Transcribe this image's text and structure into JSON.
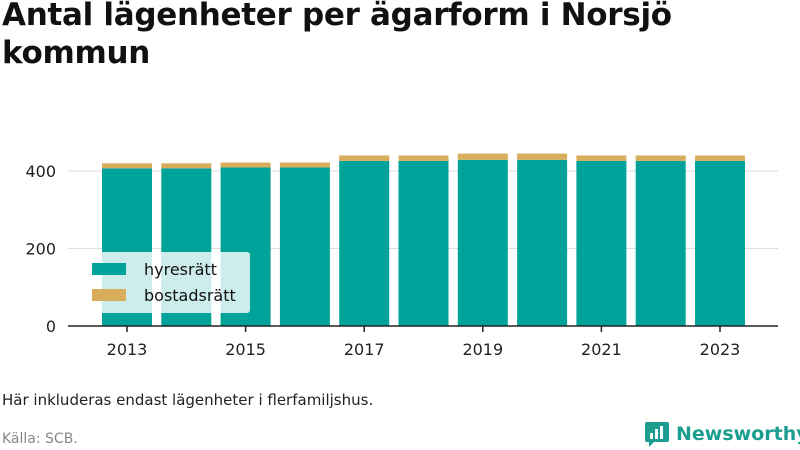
{
  "header": {
    "title": "Antal lägenheter per ägarform i Norsjö kommun"
  },
  "chart_data": {
    "type": "bar",
    "stacked": true,
    "categories": [
      "2013",
      "2014",
      "2015",
      "2016",
      "2017",
      "2018",
      "2019",
      "2020",
      "2021",
      "2022",
      "2023"
    ],
    "x_tick_labels": [
      "2013",
      "2015",
      "2017",
      "2019",
      "2021",
      "2023"
    ],
    "y_tick_labels": [
      "0",
      "200",
      "400"
    ],
    "ylim": [
      0,
      470
    ],
    "grid": true,
    "legend_position": "bottom-left",
    "series": [
      {
        "name": "hyresrätt",
        "color": "#00a39a",
        "values": [
          407,
          407,
          409,
          409,
          426,
          426,
          429,
          429,
          426,
          426,
          426
        ]
      },
      {
        "name": "bostadsrätt",
        "color": "#d8ad5b",
        "values": [
          13,
          13,
          13,
          13,
          14,
          14,
          16,
          16,
          14,
          14,
          14
        ]
      }
    ]
  },
  "footer": {
    "note": "Här inkluderas endast lägenheter i flerfamiljshus.",
    "source": "Källa: SCB.",
    "brand": "Newsworthy",
    "brand_color": "#1b9e8f"
  }
}
